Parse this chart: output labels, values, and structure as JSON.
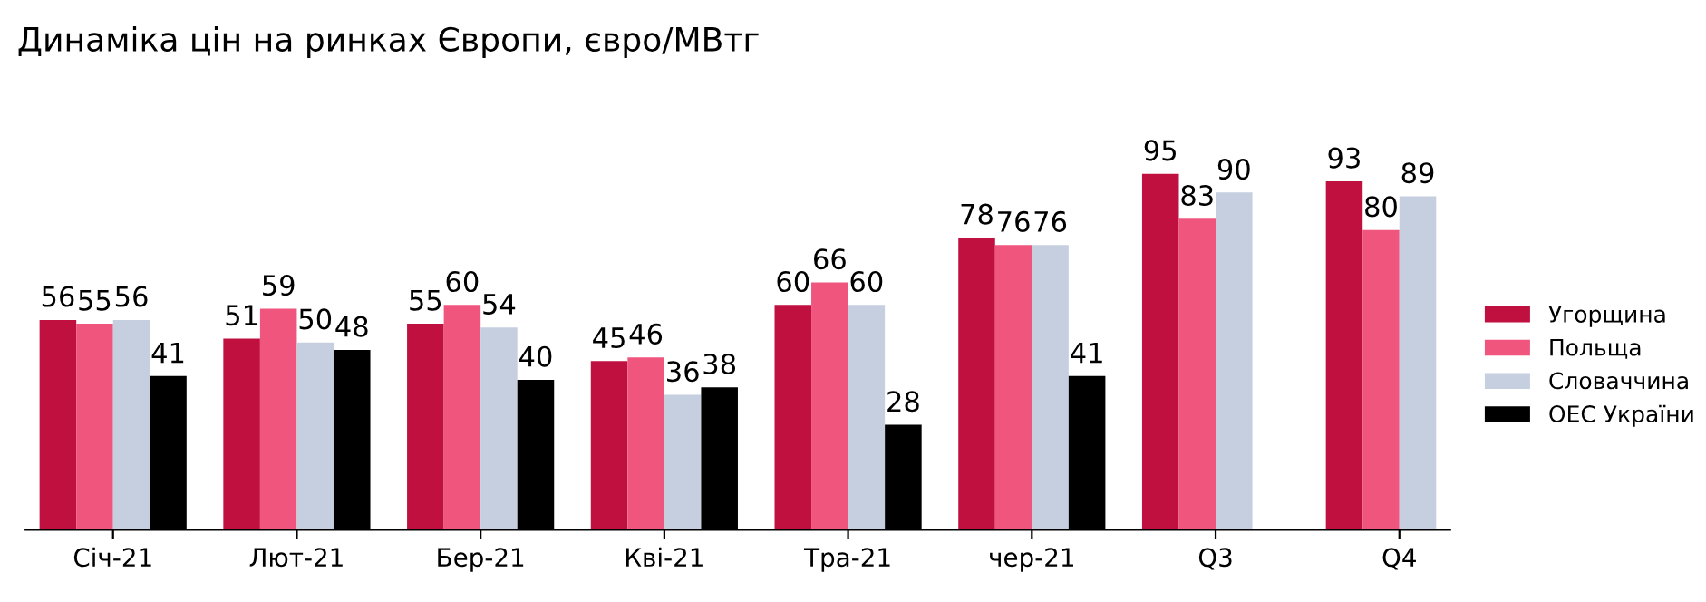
{
  "chart_data": {
    "type": "bar",
    "title": "Динаміка цін на ринках Європи, євро/МВтг",
    "categories": [
      "Січ-21",
      "Лют-21",
      "Бер-21",
      "Кві-21",
      "Тра-21",
      "чер-21",
      "Q3",
      "Q4"
    ],
    "series": [
      {
        "name": "Угорщина",
        "color": "#c0103f",
        "values": [
          56,
          51,
          55,
          45,
          60,
          78,
          95,
          93
        ]
      },
      {
        "name": "Польща",
        "color": "#f0557e",
        "values": [
          55,
          59,
          60,
          46,
          66,
          76,
          83,
          80
        ]
      },
      {
        "name": "Словаччина",
        "color": "#c5cfe0",
        "values": [
          56,
          50,
          54,
          36,
          60,
          76,
          90,
          89
        ]
      },
      {
        "name": "ОЕС України",
        "color": "#000000",
        "values": [
          41,
          48,
          40,
          38,
          28,
          41,
          null,
          null
        ]
      }
    ],
    "data_labels": true,
    "legend": "right",
    "grid": false,
    "tick_labels": "x"
  }
}
